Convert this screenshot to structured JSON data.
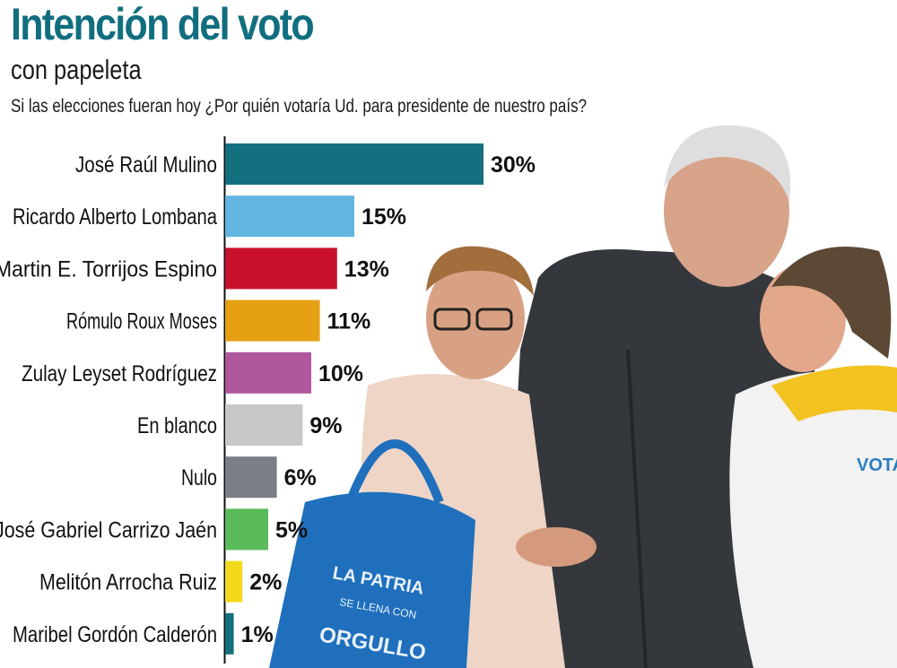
{
  "header": {
    "title": "Intención del voto",
    "subtitle": "con papeleta",
    "question": "Si las elecciones fueran hoy ¿Por quién votaría Ud. para presidente de nuestro país?"
  },
  "photo": {
    "description_icon": "campaign-photo",
    "bag_text": [
      "LA PATRIA",
      "SE LLENA CON",
      "ORGULLO"
    ],
    "shirt_text": "VOTA"
  },
  "chart_data": {
    "type": "bar",
    "orientation": "horizontal",
    "title": "Intención del voto",
    "subtitle": "con papeleta",
    "categories": [
      "José Raúl Mulino",
      "Ricardo Alberto Lombana",
      "Martin E. Torrijos Espino",
      "Rómulo Roux Moses",
      "Zulay Leyset Rodríguez",
      "En blanco",
      "Nulo",
      "José Gabriel Carrizo Jaén",
      "Melitón Arrocha Ruiz",
      "Maribel Gordón Calderón"
    ],
    "values": [
      30,
      15,
      13,
      11,
      10,
      9,
      6,
      5,
      2,
      1
    ],
    "value_labels": [
      "30%",
      "15%",
      "13%",
      "11%",
      "10%",
      "9%",
      "6%",
      "5%",
      "2%",
      "1%"
    ],
    "colors": [
      "#14707f",
      "#62b5e0",
      "#c8102e",
      "#e5a014",
      "#b0579e",
      "#c8c8c8",
      "#7a7e85",
      "#5bbb5a",
      "#f2d91c",
      "#14707f"
    ],
    "xlim": [
      0,
      30
    ],
    "grid": false,
    "legend": "none"
  }
}
